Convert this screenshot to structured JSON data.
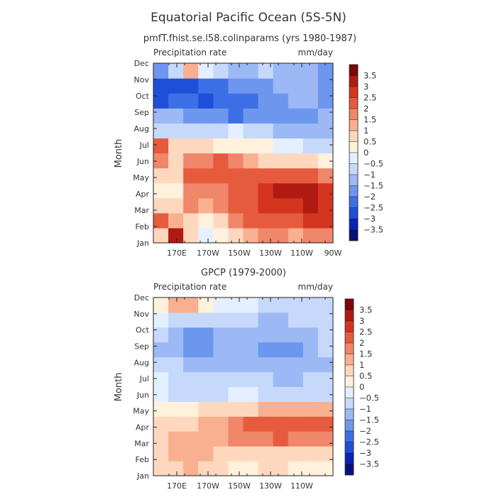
{
  "figure": {
    "title": "Equatorial Pacific Ocean (5S-5N)",
    "colors": [
      "#08107a",
      "#0a23b4",
      "#1f4fd8",
      "#3c6fe6",
      "#6d96ef",
      "#9cb8f5",
      "#c6d9fa",
      "#e4efff",
      "#fff1dc",
      "#fdd8bf",
      "#f8b090",
      "#f0866a",
      "#e65b3e",
      "#d4351f",
      "#b01a10",
      "#7d0606"
    ],
    "colorbar_labels": [
      "3.5",
      "3",
      "2.5",
      "2",
      "1.5",
      "1",
      "0.5",
      "0",
      "-0.5",
      "-1",
      "-1.5",
      "-2",
      "-2.5",
      "-3",
      "-3.5"
    ]
  },
  "chart_data": [
    {
      "type": "heatmap",
      "title": "pmfT.fhist.se.l58.colinparams (yrs 1980-1987)",
      "variable_label": "Precipitation rate",
      "units_label": "mm/day",
      "ylabel": "Month",
      "y_categories": [
        "Jan",
        "Feb",
        "Mar",
        "Apr",
        "May",
        "Jun",
        "Jul",
        "Aug",
        "Sep",
        "Oct",
        "Nov",
        "Dec"
      ],
      "x_range_degE": [
        155,
        270
      ],
      "x_ticks": [
        {
          "value": 170,
          "label": "170E"
        },
        {
          "value": 190,
          "label": "170W"
        },
        {
          "value": 210,
          "label": "150W"
        },
        {
          "value": 230,
          "label": "130W"
        },
        {
          "value": 250,
          "label": "110W"
        },
        {
          "value": 270,
          "label": "90W"
        }
      ],
      "x_grid": [
        155,
        165,
        175,
        185,
        195,
        205,
        215,
        225,
        235,
        245,
        255,
        265
      ],
      "values": [
        [
          0.6,
          3.0,
          0.7,
          -0.3,
          0.2,
          0.5,
          1.0,
          1.5,
          1.6,
          1.4,
          1.5,
          1.6
        ],
        [
          2.2,
          1.4,
          0.6,
          0.0,
          0.9,
          1.5,
          2.0,
          2.2,
          2.3,
          2.4,
          2.5,
          2.6
        ],
        [
          0.5,
          0.8,
          1.7,
          1.4,
          1.6,
          2.1,
          2.4,
          2.6,
          2.7,
          2.8,
          3.0,
          2.9
        ],
        [
          0.0,
          0.3,
          1.9,
          1.8,
          1.9,
          2.0,
          2.4,
          2.8,
          3.0,
          3.1,
          3.0,
          2.8
        ],
        [
          0.7,
          0.6,
          2.2,
          2.1,
          2.0,
          2.2,
          2.3,
          2.3,
          2.2,
          2.1,
          2.0,
          1.9
        ],
        [
          1.8,
          0.9,
          1.5,
          1.8,
          2.0,
          1.8,
          1.2,
          0.9,
          0.7,
          0.6,
          0.5,
          0.4
        ],
        [
          2.2,
          0.6,
          0.5,
          0.6,
          0.4,
          0.3,
          0.1,
          0.0,
          -0.2,
          -0.4,
          -0.6,
          -0.8
        ],
        [
          -0.6,
          -0.7,
          -0.8,
          -0.9,
          -0.6,
          -0.5,
          -0.7,
          -0.9,
          -1.1,
          -1.3,
          -1.4,
          -1.5
        ],
        [
          -1.4,
          -1.4,
          -1.6,
          -1.8,
          -2.0,
          -2.1,
          -2.0,
          -2.0,
          -1.9,
          -1.8,
          -1.7,
          -1.5
        ],
        [
          -2.7,
          -2.5,
          -2.5,
          -2.6,
          -2.4,
          -2.2,
          -2.1,
          -1.9,
          -1.6,
          -1.4,
          -1.2,
          -1.7
        ],
        [
          -2.9,
          -2.7,
          -2.6,
          -2.4,
          -2.2,
          -2.0,
          -1.8,
          -1.6,
          -1.3,
          -1.1,
          -1.3,
          -1.7
        ],
        [
          -1.8,
          -0.8,
          1.2,
          -0.5,
          -1.0,
          -1.2,
          -1.4,
          -0.9,
          -1.2,
          -1.4,
          -1.5,
          -1.6
        ]
      ]
    },
    {
      "type": "heatmap",
      "title": "GPCP (1979-2000)",
      "variable_label": "Precipitation rate",
      "units_label": "mm/day",
      "ylabel": "Month",
      "y_categories": [
        "Jan",
        "Feb",
        "Mar",
        "Apr",
        "May",
        "Jun",
        "Jul",
        "Aug",
        "Sep",
        "Oct",
        "Nov",
        "Dec"
      ],
      "x_range_degE": [
        155,
        270
      ],
      "x_ticks": [
        {
          "value": 170,
          "label": "170E"
        },
        {
          "value": 190,
          "label": "170W"
        },
        {
          "value": 210,
          "label": "150W"
        },
        {
          "value": 230,
          "label": "130W"
        },
        {
          "value": 250,
          "label": "110W"
        }
      ],
      "x_grid": [
        155,
        165,
        175,
        185,
        195,
        205,
        215,
        225,
        235,
        245,
        255,
        265
      ],
      "values": [
        [
          0.6,
          0.9,
          1.1,
          0.8,
          0.6,
          0.4,
          0.4,
          0.5,
          0.5,
          0.4,
          0.4,
          0.3
        ],
        [
          0.6,
          1.0,
          1.2,
          1.1,
          0.9,
          0.8,
          0.8,
          0.9,
          0.9,
          0.9,
          0.8,
          0.7
        ],
        [
          0.7,
          1.1,
          1.0,
          1.1,
          1.3,
          1.6,
          1.8,
          1.9,
          2.0,
          1.9,
          1.8,
          1.6
        ],
        [
          0.5,
          0.7,
          0.8,
          1.0,
          1.2,
          1.6,
          2.0,
          2.2,
          2.4,
          2.4,
          2.3,
          2.1
        ],
        [
          0.3,
          0.1,
          0.2,
          0.5,
          0.7,
          0.8,
          0.9,
          1.0,
          1.1,
          1.2,
          1.2,
          1.1
        ],
        [
          -0.3,
          -0.7,
          -0.9,
          -0.8,
          -0.6,
          -0.5,
          -0.5,
          -0.6,
          -0.8,
          -0.9,
          -0.9,
          -1.0
        ],
        [
          -0.5,
          -0.9,
          -1.0,
          -1.0,
          -0.8,
          -0.8,
          -0.9,
          -1.0,
          -1.1,
          -1.1,
          -1.0,
          -1.0
        ],
        [
          -0.7,
          -1.0,
          -1.2,
          -1.2,
          -1.1,
          -1.1,
          -1.2,
          -1.3,
          -1.4,
          -1.3,
          -1.2,
          -1.1
        ],
        [
          -1.2,
          -1.4,
          -1.9,
          -1.8,
          -1.3,
          -1.3,
          -1.5,
          -1.6,
          -1.7,
          -1.6,
          -1.2,
          -1.0
        ],
        [
          -0.8,
          -1.3,
          -1.8,
          -1.7,
          -1.2,
          -1.2,
          -1.3,
          -1.4,
          -1.3,
          -1.2,
          -1.1,
          -0.9
        ],
        [
          -0.4,
          -0.8,
          -1.0,
          -0.9,
          -0.9,
          -1.0,
          -1.0,
          -1.1,
          -1.1,
          -1.0,
          -0.9,
          -0.8
        ],
        [
          0.2,
          1.1,
          1.3,
          0.2,
          -0.2,
          -0.4,
          -0.5,
          -0.6,
          -0.6,
          -0.6,
          -0.6,
          -0.6
        ]
      ]
    }
  ]
}
